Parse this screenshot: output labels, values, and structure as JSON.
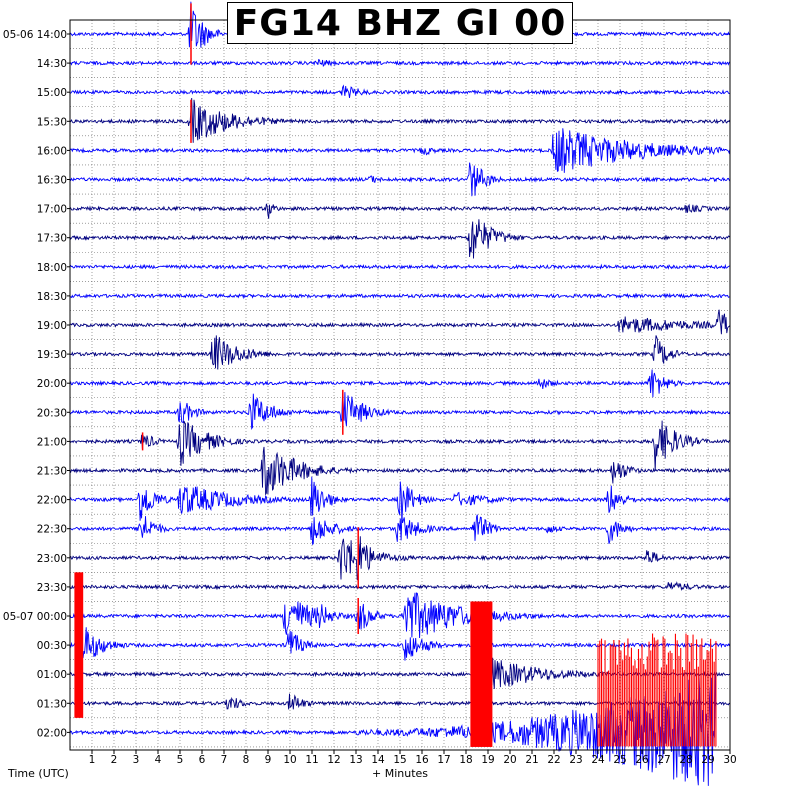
{
  "chart_data": {
    "type": "helicorder",
    "title": "FG14 BHZ GI 00",
    "xlabel": "+ Minutes",
    "ylabel": "Time (UTC)",
    "xlim": [
      0,
      30
    ],
    "x_ticks": [
      1,
      2,
      3,
      4,
      5,
      6,
      7,
      8,
      9,
      10,
      11,
      12,
      13,
      14,
      15,
      16,
      17,
      18,
      19,
      20,
      21,
      22,
      23,
      24,
      25,
      26,
      27,
      28,
      29,
      30
    ],
    "grid": true,
    "rows": [
      {
        "label": "05-06 14:00",
        "color": "#0000ff"
      },
      {
        "label": "14:30",
        "color": "#0000ff"
      },
      {
        "label": "15:00",
        "color": "#0000ff"
      },
      {
        "label": "15:30",
        "color": "#000080"
      },
      {
        "label": "16:00",
        "color": "#0000ff"
      },
      {
        "label": "16:30",
        "color": "#0000ff"
      },
      {
        "label": "17:00",
        "color": "#000080"
      },
      {
        "label": "17:30",
        "color": "#000080"
      },
      {
        "label": "18:00",
        "color": "#0000ff"
      },
      {
        "label": "18:30",
        "color": "#0000ff"
      },
      {
        "label": "19:00",
        "color": "#000080"
      },
      {
        "label": "19:30",
        "color": "#000080"
      },
      {
        "label": "20:00",
        "color": "#0000ff"
      },
      {
        "label": "20:30",
        "color": "#0000ff"
      },
      {
        "label": "21:00",
        "color": "#000080"
      },
      {
        "label": "21:30",
        "color": "#000080"
      },
      {
        "label": "22:00",
        "color": "#0000ff"
      },
      {
        "label": "22:30",
        "color": "#0000ff"
      },
      {
        "label": "23:00",
        "color": "#000080"
      },
      {
        "label": "23:30",
        "color": "#000080"
      },
      {
        "label": "05-07 00:00",
        "color": "#0000ff"
      },
      {
        "label": "00:30",
        "color": "#0000ff"
      },
      {
        "label": "01:00",
        "color": "#000080"
      },
      {
        "label": "01:30",
        "color": "#000080"
      },
      {
        "label": "02:00",
        "color": "#0000ff"
      }
    ],
    "events": [
      {
        "row": 0,
        "minute": 5.5,
        "amp": 34,
        "dur": 1.0,
        "clip": true
      },
      {
        "row": 1,
        "minute": 11.2,
        "amp": 5,
        "dur": 1.5
      },
      {
        "row": 2,
        "minute": 12.4,
        "amp": 8,
        "dur": 1.5
      },
      {
        "row": 3,
        "minute": 5.5,
        "amp": 24,
        "dur": 3.0,
        "clip": true
      },
      {
        "row": 4,
        "minute": 16.0,
        "amp": 6,
        "dur": 1.0
      },
      {
        "row": 4,
        "minute": 22.0,
        "amp": 26,
        "dur": 6.0
      },
      {
        "row": 5,
        "minute": 18.2,
        "amp": 24,
        "dur": 1.0
      },
      {
        "row": 5,
        "minute": 13.6,
        "amp": 5,
        "dur": 1.0
      },
      {
        "row": 6,
        "minute": 9.0,
        "amp": 12,
        "dur": 0.5
      },
      {
        "row": 6,
        "minute": 28.0,
        "amp": 5,
        "dur": 2.0
      },
      {
        "row": 7,
        "minute": 18.2,
        "amp": 30,
        "dur": 1.5
      },
      {
        "row": 10,
        "minute": 25.0,
        "amp": 10,
        "dur": 6.0
      },
      {
        "row": 10,
        "minute": 29.5,
        "amp": 18,
        "dur": 1.0
      },
      {
        "row": 11,
        "minute": 6.5,
        "amp": 22,
        "dur": 2.0
      },
      {
        "row": 11,
        "minute": 26.6,
        "amp": 20,
        "dur": 1.0
      },
      {
        "row": 12,
        "minute": 21.3,
        "amp": 8,
        "dur": 1.0
      },
      {
        "row": 12,
        "minute": 26.4,
        "amp": 20,
        "dur": 1.0
      },
      {
        "row": 13,
        "minute": 8.2,
        "amp": 22,
        "dur": 1.5
      },
      {
        "row": 13,
        "minute": 12.4,
        "amp": 25,
        "dur": 1.5,
        "clip": true
      },
      {
        "row": 13,
        "minute": 5.0,
        "amp": 16,
        "dur": 1.0
      },
      {
        "row": 14,
        "minute": 5.0,
        "amp": 26,
        "dur": 2.0
      },
      {
        "row": 14,
        "minute": 3.3,
        "amp": 10,
        "dur": 1.0,
        "clip": true
      },
      {
        "row": 14,
        "minute": 26.6,
        "amp": 30,
        "dur": 1.5
      },
      {
        "row": 15,
        "minute": 8.8,
        "amp": 30,
        "dur": 2.5
      },
      {
        "row": 15,
        "minute": 24.7,
        "amp": 16,
        "dur": 1.0
      },
      {
        "row": 16,
        "minute": 3.2,
        "amp": 26,
        "dur": 1.0
      },
      {
        "row": 16,
        "minute": 5.0,
        "amp": 18,
        "dur": 4.0
      },
      {
        "row": 16,
        "minute": 11.0,
        "amp": 26,
        "dur": 1.0
      },
      {
        "row": 16,
        "minute": 15.0,
        "amp": 26,
        "dur": 1.0
      },
      {
        "row": 16,
        "minute": 17.5,
        "amp": 8,
        "dur": 3.0
      },
      {
        "row": 16,
        "minute": 24.5,
        "amp": 18,
        "dur": 1.0
      },
      {
        "row": 17,
        "minute": 3.2,
        "amp": 20,
        "dur": 1.0
      },
      {
        "row": 17,
        "minute": 11.0,
        "amp": 18,
        "dur": 1.5
      },
      {
        "row": 17,
        "minute": 14.9,
        "amp": 18,
        "dur": 1.5
      },
      {
        "row": 17,
        "minute": 18.4,
        "amp": 20,
        "dur": 1.0
      },
      {
        "row": 17,
        "minute": 24.5,
        "amp": 16,
        "dur": 1.0
      },
      {
        "row": 17,
        "minute": 21.7,
        "amp": 6,
        "dur": 1.0
      },
      {
        "row": 18,
        "minute": 12.3,
        "amp": 28,
        "dur": 2.0
      },
      {
        "row": 18,
        "minute": 13.1,
        "amp": 34,
        "dur": 0.8,
        "clip": true
      },
      {
        "row": 18,
        "minute": 26.2,
        "amp": 10,
        "dur": 1.0
      },
      {
        "row": 19,
        "minute": 27.2,
        "amp": 6,
        "dur": 2.0
      },
      {
        "row": 20,
        "minute": 9.8,
        "amp": 26,
        "dur": 2.0
      },
      {
        "row": 20,
        "minute": 15.2,
        "amp": 30,
        "dur": 4.0
      },
      {
        "row": 20,
        "minute": 13.1,
        "amp": 20,
        "dur": 1.0,
        "clip": true
      },
      {
        "row": 20,
        "minute": 11.3,
        "amp": 16,
        "dur": 1.0
      },
      {
        "row": 21,
        "minute": 0.5,
        "amp": 24,
        "dur": 1.5,
        "clip": true
      },
      {
        "row": 21,
        "minute": 9.9,
        "amp": 20,
        "dur": 1.0
      },
      {
        "row": 21,
        "minute": 15.2,
        "amp": 18,
        "dur": 1.5
      },
      {
        "row": 22,
        "minute": 18.8,
        "amp": 20,
        "dur": 4.0
      },
      {
        "row": 23,
        "minute": 10.0,
        "amp": 12,
        "dur": 1.0
      },
      {
        "row": 23,
        "minute": 7.2,
        "amp": 10,
        "dur": 1.0
      }
    ],
    "clip_blocks": [
      {
        "row": 21,
        "x_start": 0.2,
        "x_end": 0.6
      },
      {
        "row": 22,
        "x_start": 18.2,
        "x_end": 19.2
      }
    ],
    "final_row_trend": {
      "row": 24,
      "start_minute": 13,
      "end_minute": 29.4,
      "max_amp": 60
    },
    "final_row_clip": {
      "x_start": 24.0,
      "x_end": 29.4
    }
  }
}
